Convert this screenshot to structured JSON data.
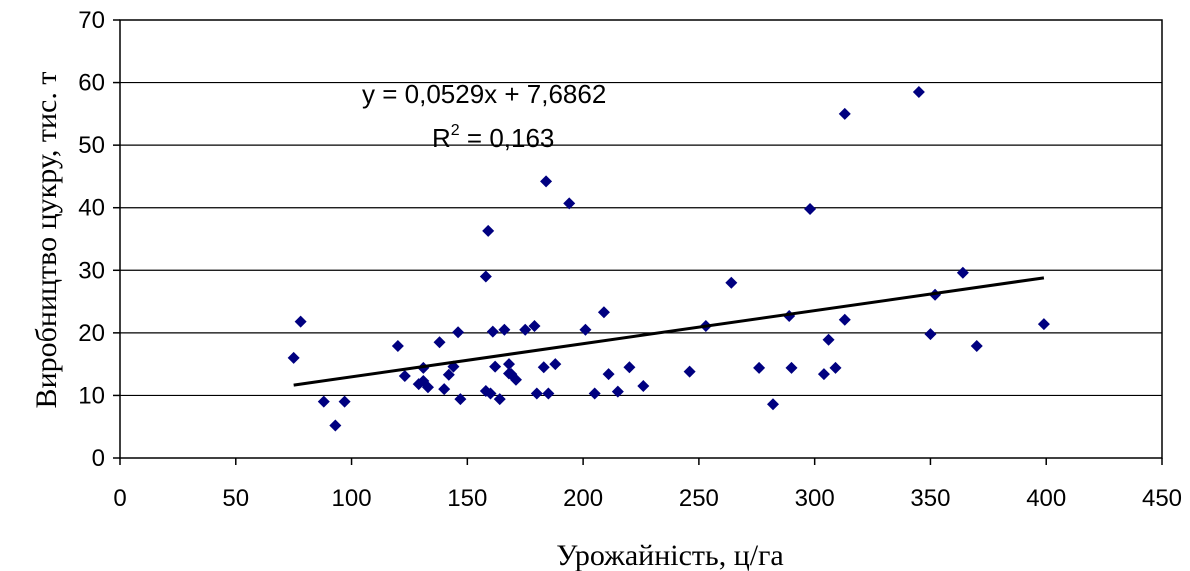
{
  "chart_data": {
    "type": "scatter",
    "xlabel": "Урожайність, ц/га",
    "ylabel": "Виробництво цукру, тис. т",
    "xlim": [
      0,
      450
    ],
    "ylim": [
      0,
      70
    ],
    "xticks": [
      0,
      50,
      100,
      150,
      200,
      250,
      300,
      350,
      400,
      450
    ],
    "yticks": [
      0,
      10,
      20,
      30,
      40,
      50,
      60,
      70
    ],
    "grid": "horizontal",
    "marker_color": "#000080",
    "trendline": {
      "slope": 0.0529,
      "intercept": 7.6862,
      "x_range": [
        75,
        399
      ],
      "equation": "y = 0,0529x + 7,6862",
      "r2_prefix": "R",
      "r2_exp": "2",
      "r2_suffix": " = 0,163"
    },
    "points": [
      [
        75,
        16
      ],
      [
        78,
        21.8
      ],
      [
        88,
        9
      ],
      [
        93,
        5.2
      ],
      [
        97,
        9
      ],
      [
        120,
        17.9
      ],
      [
        123,
        13.1
      ],
      [
        129,
        11.8
      ],
      [
        131,
        14.4
      ],
      [
        131,
        12.3
      ],
      [
        133,
        11.3
      ],
      [
        138,
        18.5
      ],
      [
        140,
        11
      ],
      [
        142,
        13.3
      ],
      [
        144,
        14.6
      ],
      [
        146,
        20.1
      ],
      [
        147,
        9.4
      ],
      [
        158,
        29
      ],
      [
        158,
        10.7
      ],
      [
        159,
        36.3
      ],
      [
        160,
        10.3
      ],
      [
        161,
        20.2
      ],
      [
        162,
        14.6
      ],
      [
        164,
        9.4
      ],
      [
        166,
        20.5
      ],
      [
        168,
        13.5
      ],
      [
        168,
        15
      ],
      [
        169,
        13.4
      ],
      [
        171,
        12.5
      ],
      [
        175,
        20.5
      ],
      [
        179,
        21.1
      ],
      [
        180,
        10.3
      ],
      [
        183,
        14.5
      ],
      [
        184,
        44.2
      ],
      [
        185,
        10.3
      ],
      [
        188,
        15
      ],
      [
        194,
        40.7
      ],
      [
        201,
        20.5
      ],
      [
        205,
        10.3
      ],
      [
        209,
        23.3
      ],
      [
        211,
        13.4
      ],
      [
        215,
        10.6
      ],
      [
        220,
        14.5
      ],
      [
        226,
        11.5
      ],
      [
        246,
        13.8
      ],
      [
        253,
        21.1
      ],
      [
        264,
        28
      ],
      [
        276,
        14.4
      ],
      [
        282,
        8.6
      ],
      [
        289,
        22.7
      ],
      [
        290,
        14.4
      ],
      [
        298,
        39.8
      ],
      [
        304,
        13.4
      ],
      [
        306,
        18.9
      ],
      [
        309,
        14.4
      ],
      [
        313,
        55
      ],
      [
        313,
        22.1
      ],
      [
        345,
        58.5
      ],
      [
        350,
        19.8
      ],
      [
        352,
        26.1
      ],
      [
        364,
        29.6
      ],
      [
        370,
        17.9
      ],
      [
        399,
        21.4
      ]
    ]
  }
}
